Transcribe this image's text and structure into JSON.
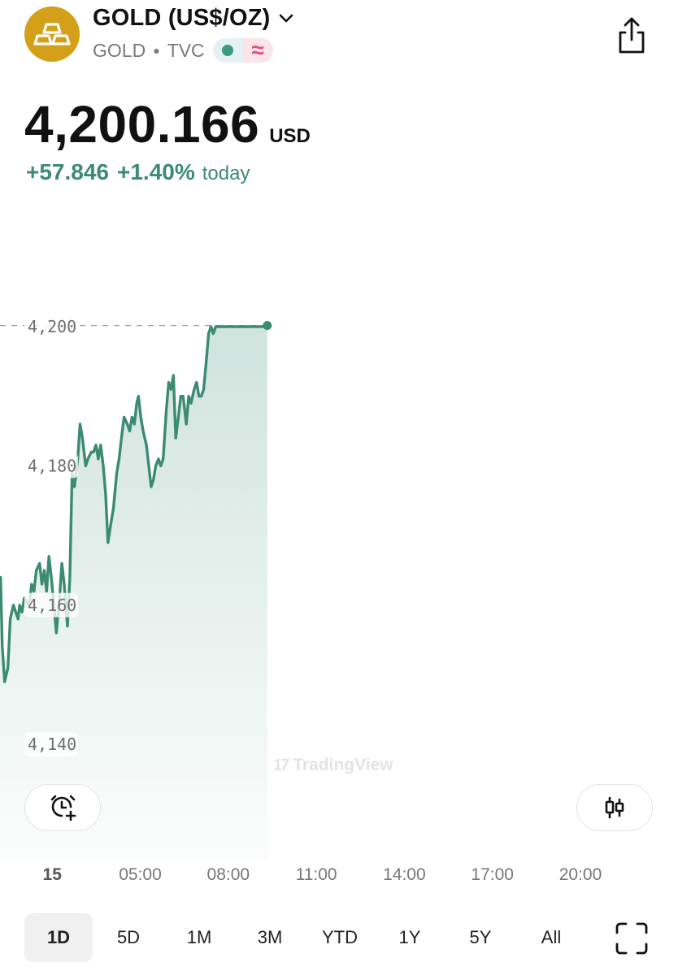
{
  "header": {
    "title": "GOLD (US$/OZ)",
    "symbol": "GOLD",
    "exchange": "TVC",
    "logo_color": "#d4a01a",
    "icons": [
      "gold-bars-icon",
      "chevron-down-icon",
      "market-status-dot-icon",
      "delayed-data-icon",
      "share-icon"
    ]
  },
  "quote": {
    "price": "4,200.166",
    "currency": "USD",
    "change_abs": "+57.846",
    "change_pct": "+1.40%",
    "change_period": "today",
    "positive_color": "#3b8b73"
  },
  "chart_data": {
    "type": "area",
    "ylim": [
      4135,
      4228
    ],
    "xlim": [
      0,
      24
    ],
    "y_ticks": [
      4200,
      4180,
      4160,
      4140
    ],
    "y_tick_labels": [
      "4,200",
      "4,180",
      "4,160",
      "4,140"
    ],
    "x_ticks": [
      2,
      5,
      8,
      11,
      14,
      17,
      20
    ],
    "x_tick_labels": [
      "15",
      "05:00",
      "08:00",
      "11:00",
      "14:00",
      "17:00",
      "20:00"
    ],
    "last_value": 4200.166,
    "last_price_line": true,
    "watermark": "TradingView",
    "line_color": "#3b8b73",
    "grid": false,
    "x": [
      0.07,
      0.16,
      0.24,
      0.3,
      0.38,
      0.49,
      0.57,
      0.68,
      0.84,
      0.89,
      0.97,
      1.05,
      1.22,
      1.3,
      1.38,
      1.46,
      1.57,
      1.65,
      1.73,
      1.81,
      1.89,
      1.97,
      2.06,
      2.14,
      2.25,
      2.33,
      2.41,
      2.52,
      2.6,
      2.68,
      2.76,
      2.87,
      2.95,
      3.03,
      3.14,
      3.22,
      3.33,
      3.38,
      3.41,
      3.49,
      3.57,
      3.65,
      3.74,
      3.82,
      3.9,
      4.01,
      4.09,
      4.2,
      4.28,
      4.36,
      4.45,
      4.56,
      4.64,
      4.72,
      4.8,
      4.88,
      4.94,
      5.02,
      5.1,
      5.21,
      5.29,
      5.37,
      5.45,
      5.53,
      5.62,
      5.7,
      5.78,
      5.89,
      5.97,
      6.05,
      6.13,
      6.21,
      6.3,
      6.38,
      6.46,
      6.57,
      6.65,
      6.73,
      6.84,
      6.92,
      7.0,
      7.08,
      7.16,
      7.25,
      7.33,
      7.41,
      7.49,
      7.57,
      7.65,
      7.73,
      7.84,
      7.92,
      8.01,
      8.09,
      8.17,
      8.25,
      8.33,
      8.44,
      8.52,
      8.61,
      8.69,
      8.74,
      8.82,
      8.9,
      8.98,
      9.09,
      9.15,
      9.23,
      9.28,
      9.33
    ],
    "y": [
      4141,
      4162,
      4164,
      4154,
      4149,
      4151,
      4158,
      4160,
      4158,
      4160,
      4159,
      4161,
      4160,
      4163,
      4162,
      4165,
      4166,
      4163,
      4165,
      4162,
      4167,
      4164,
      4160,
      4156,
      4161,
      4166,
      4163,
      4157,
      4164,
      4179,
      4177,
      4181,
      4186,
      4184,
      4180,
      4181,
      4182,
      4182,
      4182,
      4183,
      4181,
      4183,
      4180,
      4176,
      4169,
      4172,
      4174,
      4179,
      4181,
      4184,
      4187,
      4186,
      4185,
      4187,
      4186,
      4189,
      4190,
      4187,
      4185,
      4183,
      4180,
      4177,
      4178,
      4180,
      4181,
      4180,
      4181,
      4188,
      4192,
      4191,
      4193,
      4184,
      4187,
      4190,
      4190,
      4186,
      4190,
      4189,
      4191,
      4192,
      4190,
      4190,
      4191,
      4195,
      4199,
      4200,
      4199,
      4200,
      4200,
      4200,
      4200,
      4200,
      4200,
      4200,
      4200,
      4200,
      4200,
      4200,
      4200,
      4200,
      4200,
      4200,
      4200,
      4200,
      4200,
      4200,
      4200,
      4200,
      4200,
      4200
    ]
  },
  "chart_controls": {
    "alert_icon": "alarm-plus-icon",
    "chart_type_icon": "candlestick-icon"
  },
  "range_tabs": [
    {
      "label": "1D",
      "active": true
    },
    {
      "label": "5D",
      "active": false
    },
    {
      "label": "1M",
      "active": false
    },
    {
      "label": "3M",
      "active": false
    },
    {
      "label": "YTD",
      "active": false
    },
    {
      "label": "1Y",
      "active": false
    },
    {
      "label": "5Y",
      "active": false
    },
    {
      "label": "All",
      "active": false
    }
  ],
  "fullscreen_icon": "fullscreen-icon"
}
